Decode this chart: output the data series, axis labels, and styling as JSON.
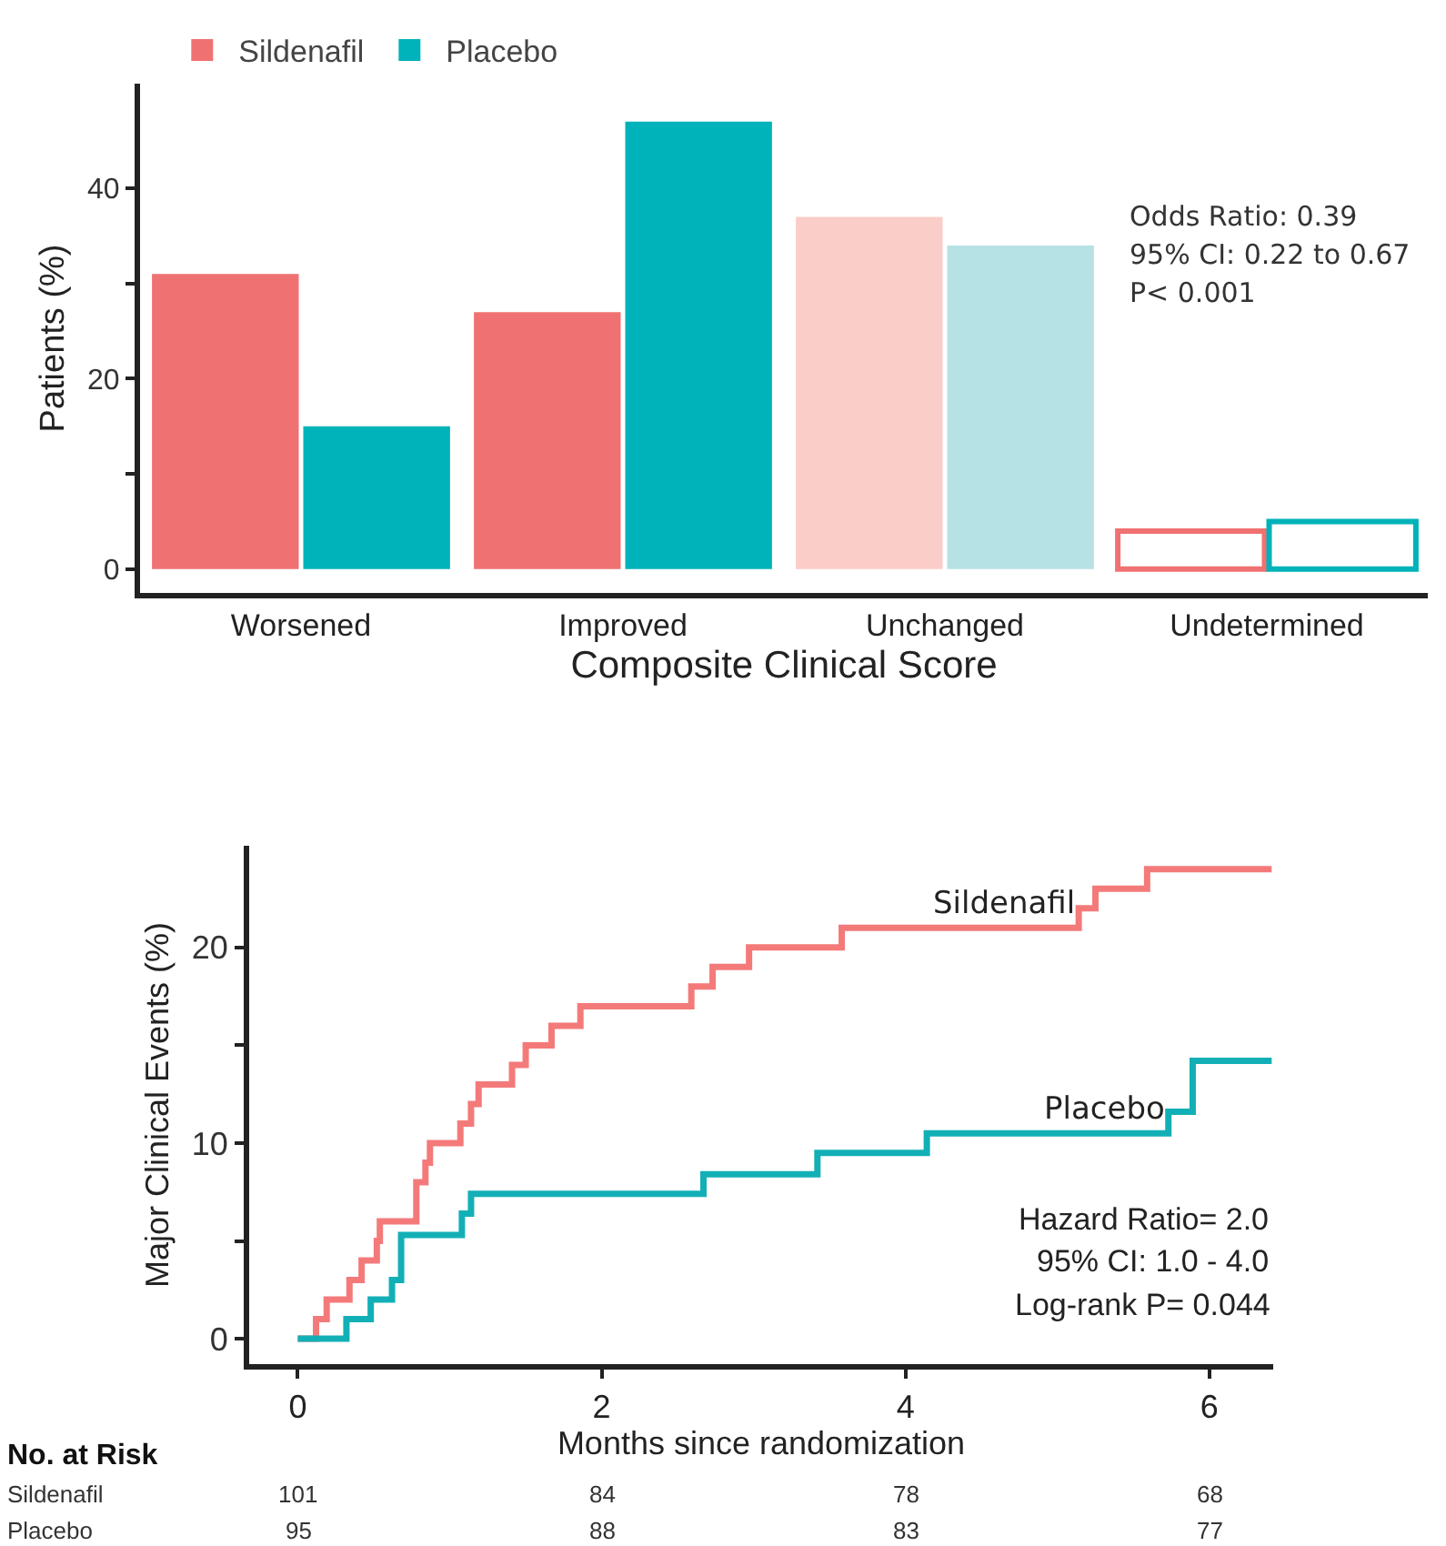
{
  "chart_data": [
    {
      "type": "bar",
      "xlabel": "Composite Clinical Score",
      "ylabel": "Patients (%)",
      "categories": [
        "Worsened",
        "Improved",
        "Unchanged",
        "Undetermined"
      ],
      "series": [
        {
          "name": "Sildenafil",
          "color": "#f07171",
          "colors": [
            "#f07171",
            "#f07171",
            "#fbcdc8",
            "#ffffff"
          ],
          "values": [
            31,
            27,
            37,
            4
          ]
        },
        {
          "name": "Placebo",
          "color": "#00b2b9",
          "colors": [
            "#00b2b9",
            "#00b2b9",
            "#b6e1e5",
            "#ffffff"
          ],
          "values": [
            15,
            47,
            34,
            5
          ]
        }
      ],
      "ylim": [
        -2.5,
        51
      ],
      "yticks": [
        0,
        {
          "value": 10,
          "label": null
        },
        20,
        {
          "value": 30,
          "label": null
        },
        40
      ],
      "grid": false,
      "legend": "top left",
      "annotations": [
        "Odds Ratio: 0.39",
        "95% CI: 0.22 to 0.67",
        "P< 0.001"
      ]
    },
    {
      "type": "step",
      "xlabel": "Months since randomization",
      "ylabel": "Major Clinical Events (%)",
      "marker": "none",
      "legend": false,
      "grid": false,
      "series": [
        {
          "name": "Sildenafil",
          "color": "#f47a7a",
          "x": [
            0,
            0.12,
            0.19,
            0.34,
            0.42,
            0.52,
            0.54,
            0.78,
            0.84,
            0.87,
            1.07,
            1.14,
            1.19,
            1.41,
            1.5,
            1.67,
            1.86,
            2.59,
            2.73,
            2.97,
            3.58,
            5.14,
            5.25,
            5.59,
            6.41
          ],
          "values": [
            0,
            1,
            2,
            3,
            4,
            5,
            6,
            8,
            9,
            10,
            11,
            12,
            13,
            14,
            15,
            16,
            17,
            18,
            19,
            20,
            21,
            22,
            23,
            24,
            24
          ]
        },
        {
          "name": "Placebo",
          "color": "#12b0b6",
          "x": [
            0,
            0.32,
            0.48,
            0.62,
            0.68,
            1.08,
            1.14,
            2.67,
            3.42,
            4.14,
            5.73,
            5.89,
            6.41
          ],
          "values": [
            0,
            1,
            2,
            3,
            5.3,
            6.4,
            7.4,
            8.4,
            9.5,
            10.5,
            11.6,
            14.2,
            14.2
          ]
        }
      ],
      "xlim": [
        -0.32,
        6.42
      ],
      "xticks": [
        0,
        2,
        4,
        6
      ],
      "ylim": [
        -1.3,
        25.2
      ],
      "yticks": [
        0,
        {
          "value": 5,
          "label": null
        },
        10,
        {
          "value": 15,
          "label": null
        },
        20
      ],
      "annotations": [
        "Hazard Ratio= 2.0",
        "95% CI: 1.0 - 4.0",
        "Log-rank P= 0.044",
        "No. at Risk",
        "Sildenafil",
        "101",
        "84",
        "78",
        "68",
        "Placebo",
        "95",
        "88",
        "83",
        "77"
      ]
    }
  ]
}
